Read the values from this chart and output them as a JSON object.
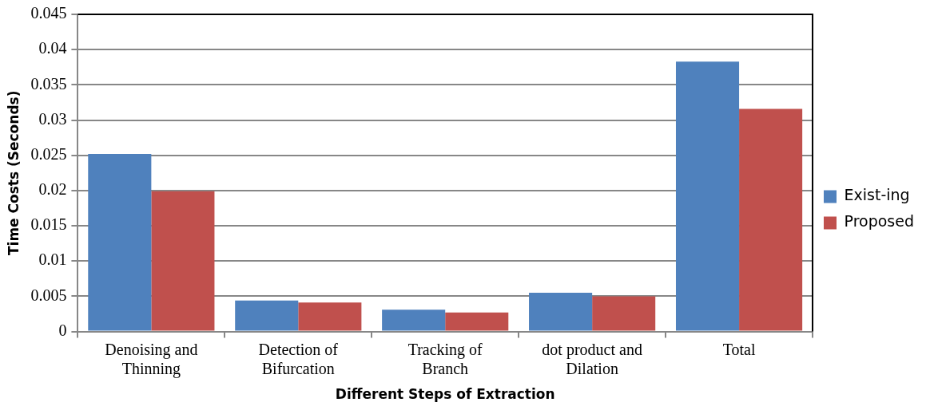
{
  "chart_data": {
    "type": "bar",
    "xlabel": "Different Steps of Extraction",
    "ylabel": "Time Costs (Seconds)",
    "categories": [
      "Denoising and Thinning",
      "Detection of Bifurcation",
      "Tracking of Branch",
      "dot product and Dilation",
      "Total"
    ],
    "series": [
      {
        "name": "Exist-ing",
        "color": "#4f81bd",
        "values": [
          0.0252,
          0.0044,
          0.0031,
          0.0055,
          0.0383
        ]
      },
      {
        "name": "Proposed",
        "color": "#c0504d",
        "values": [
          0.0199,
          0.0041,
          0.0027,
          0.005,
          0.0316
        ]
      }
    ],
    "ylim": [
      0,
      0.045
    ],
    "yticks": [
      0,
      0.005,
      0.01,
      0.015,
      0.02,
      0.025,
      0.03,
      0.035,
      0.04,
      0.045
    ],
    "grid": "y",
    "legend": "right"
  }
}
